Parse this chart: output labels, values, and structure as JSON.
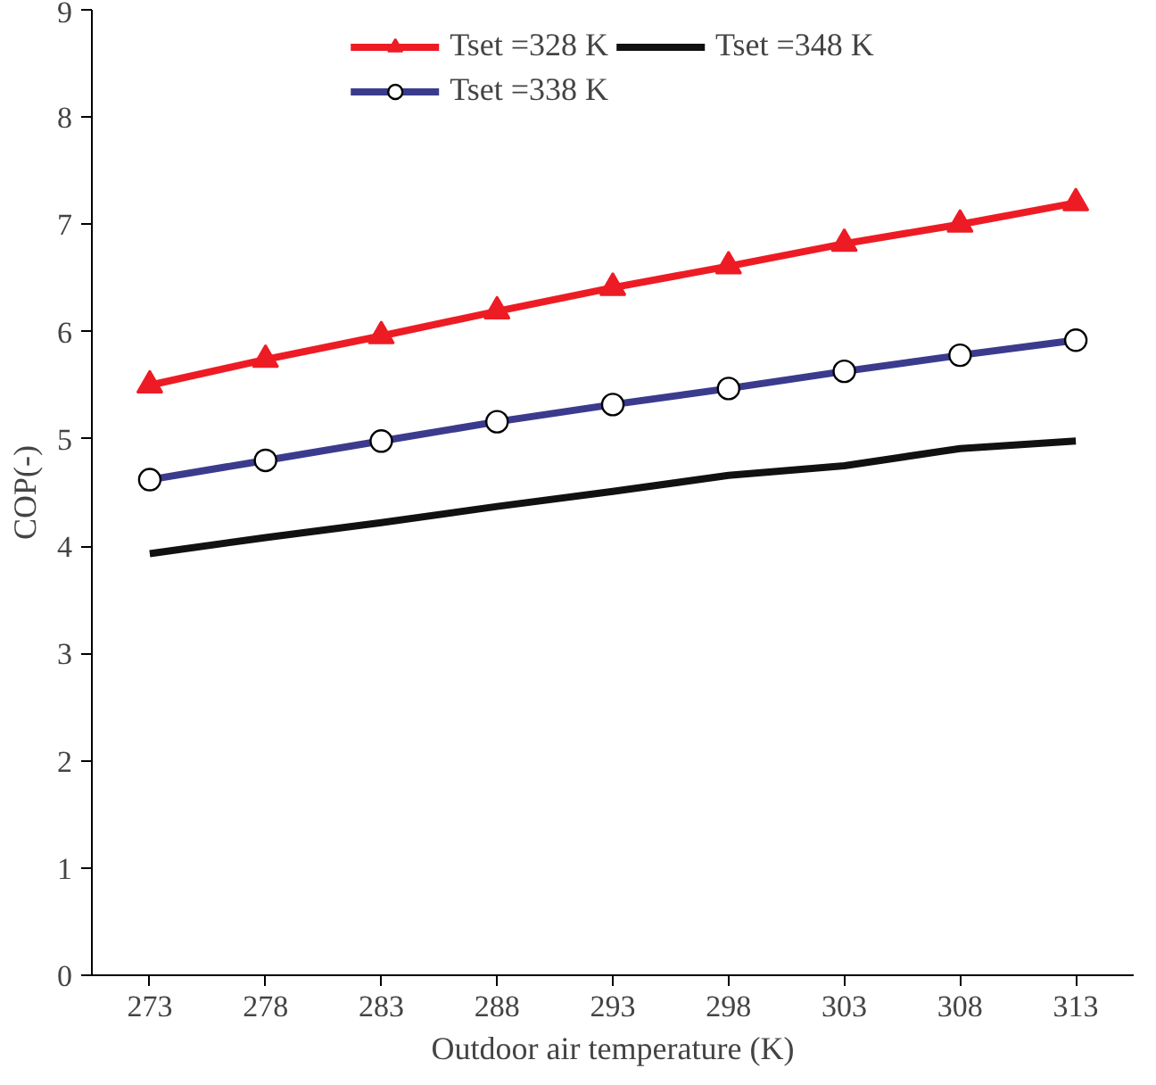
{
  "chart_data": {
    "type": "line",
    "xlabel": "Outdoor air temperature (K)",
    "ylabel": "COP(-)",
    "categories": [
      "273",
      "278",
      "283",
      "288",
      "293",
      "298",
      "303",
      "308",
      "313"
    ],
    "ylim": [
      0,
      9
    ],
    "yticks": [
      0,
      1,
      2,
      3,
      4,
      5,
      6,
      7,
      8,
      9
    ],
    "grid": false,
    "legend": "top",
    "series": [
      {
        "name": "Tset =328 K",
        "color": "#ed1c24",
        "marker": "triangle",
        "values": [
          5.5,
          5.74,
          5.96,
          6.19,
          6.41,
          6.61,
          6.82,
          7.0,
          7.2
        ]
      },
      {
        "name": "Tset =338 K",
        "color": "#3b3b8e",
        "marker": "circle",
        "values": [
          4.62,
          4.8,
          4.98,
          5.16,
          5.32,
          5.47,
          5.63,
          5.78,
          5.92
        ]
      },
      {
        "name": "Tset =348 K",
        "color": "#111111",
        "marker": "none",
        "values": [
          3.93,
          4.08,
          4.22,
          4.37,
          4.51,
          4.66,
          4.75,
          4.91,
          4.98
        ]
      }
    ]
  }
}
